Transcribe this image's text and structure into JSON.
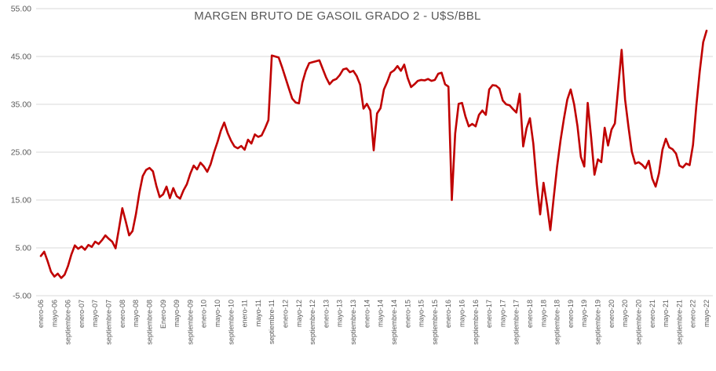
{
  "chart_data": {
    "type": "line",
    "title": "MARGEN BRUTO DE GASOIL GRADO 2 - U$S/BBL",
    "xlabel": "",
    "ylabel": "",
    "ylim": [
      -5,
      55
    ],
    "y_tick_labels": [
      "55.00",
      "45.00",
      "35.00",
      "25.00",
      "15.00",
      "5.00",
      "-5.00"
    ],
    "y_tick_values": [
      55,
      45,
      35,
      25,
      15,
      5,
      -5
    ],
    "grid": "horizontal",
    "legend": "none",
    "x_frequency": "monthly",
    "x_start": "enero-06",
    "x_end": "mayo-22",
    "x_tick_every_months": 4,
    "x_tick_labels": [
      "enero-06",
      "mayo-06",
      "septiembre-06",
      "enero-07",
      "mayo-07",
      "septiembre-07",
      "enero-08",
      "mayo-08",
      "septiembre-08",
      "Enero-09",
      "mayo-09",
      "septiembre-09",
      "enero-10",
      "mayo-10",
      "septiembre-10",
      "enero-11",
      "mayo-11",
      "septiembre-11",
      "enero-12",
      "mayo-12",
      "septiembre-12",
      "enero-13",
      "mayo-13",
      "septiembre-13",
      "enero-14",
      "mayo-14",
      "septiembre-14",
      "enero-15",
      "mayo-15",
      "septiembre-15",
      "enero-16",
      "mayo-16",
      "septiembre-16",
      "enero-17",
      "mayo-17",
      "septiembre-17",
      "enero-18",
      "mayo-18",
      "septiembre-18",
      "enero-19",
      "mayo-19",
      "septiembre-19",
      "enero-20",
      "mayo-20",
      "septiembre-20",
      "enero-21",
      "mayo-21",
      "septiembre-21",
      "enero-22",
      "mayo-22"
    ],
    "series": [
      {
        "name": "Margen bruto de gasoil grado 2 (U$S/BBL)",
        "color": "#C00000",
        "values": [
          3.3,
          4.2,
          2.2,
          0.0,
          -1.0,
          -0.4,
          -1.3,
          -0.6,
          1.2,
          3.6,
          5.5,
          4.8,
          5.3,
          4.6,
          5.6,
          5.2,
          6.3,
          5.8,
          6.6,
          7.6,
          6.9,
          6.3,
          4.9,
          9.0,
          13.3,
          10.5,
          7.6,
          8.5,
          12.0,
          16.5,
          20.0,
          21.3,
          21.7,
          21.0,
          18.0,
          15.6,
          16.2,
          17.8,
          15.4,
          17.5,
          15.8,
          15.3,
          17.0,
          18.3,
          20.5,
          22.2,
          21.4,
          22.8,
          22.0,
          20.9,
          22.5,
          25.0,
          27.1,
          29.5,
          31.2,
          29.0,
          27.4,
          26.2,
          25.8,
          26.3,
          25.5,
          27.6,
          26.8,
          28.7,
          28.2,
          28.5,
          30.0,
          31.7,
          45.2,
          45.0,
          44.8,
          42.8,
          40.6,
          38.4,
          36.2,
          35.4,
          35.2,
          39.5,
          42.0,
          43.6,
          43.8,
          44.0,
          44.2,
          42.4,
          40.6,
          39.2,
          40.0,
          40.3,
          41.1,
          42.3,
          42.5,
          41.7,
          42.0,
          40.9,
          39.1,
          34.1,
          35.1,
          33.7,
          25.4,
          33.1,
          34.2,
          38.1,
          39.7,
          41.6,
          42.1,
          43.0,
          42.0,
          43.3,
          40.5,
          38.6,
          39.2,
          39.9,
          40.1,
          40.0,
          40.3,
          39.9,
          40.1,
          41.4,
          41.6,
          39.2,
          38.7,
          15.0,
          28.9,
          35.1,
          35.3,
          32.5,
          30.4,
          30.9,
          30.4,
          32.8,
          33.7,
          32.8,
          38.1,
          39.0,
          38.9,
          38.3,
          35.8,
          35.0,
          34.8,
          34.0,
          33.3,
          37.2,
          26.2,
          30.0,
          32.1,
          26.8,
          18.4,
          12.0,
          18.6,
          14.0,
          8.7,
          15.5,
          22.0,
          27.5,
          32.0,
          36.0,
          38.1,
          35.0,
          30.4,
          24.0,
          22.0,
          35.3,
          28.2,
          20.3,
          23.5,
          22.9,
          30.1,
          26.4,
          29.7,
          31.0,
          38.6,
          46.4,
          36.0,
          30.3,
          25.1,
          22.6,
          22.9,
          22.4,
          21.6,
          23.2,
          19.5,
          17.8,
          20.6,
          25.5,
          27.8,
          26.0,
          25.6,
          24.7,
          22.2,
          21.8,
          22.6,
          22.3,
          26.5,
          34.8,
          41.9,
          48.0,
          50.4
        ]
      }
    ],
    "colors": {
      "line": "#C00000",
      "text": "#595959",
      "grid": "#D9D9D9",
      "background": "#FFFFFF"
    }
  }
}
